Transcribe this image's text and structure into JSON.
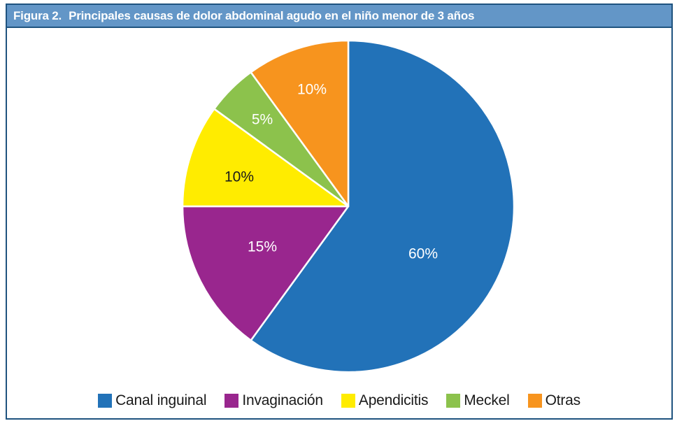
{
  "figure": {
    "header": {
      "label": "Figura 2.",
      "title": "Principales causas de dolor abdominal agudo en el niño menor de 3 años"
    },
    "colors": {
      "header_bg": "#6396C7",
      "border": "#1F537F",
      "page_bg": "#FFFFFF"
    }
  },
  "chart_data": {
    "type": "pie",
    "title": "Principales causas de dolor abdominal agudo en el niño menor de 3 años",
    "direction": "clockwise",
    "start_angle_deg": 0,
    "legend_position": "bottom",
    "slices": [
      {
        "label": "Canal inguinal",
        "value": 60,
        "display": "60%",
        "color": "#2272B8",
        "label_color": "#FFFFFF"
      },
      {
        "label": "Invaginación",
        "value": 15,
        "display": "15%",
        "color": "#99268E",
        "label_color": "#FFFFFF"
      },
      {
        "label": "Apendicitis",
        "value": 10,
        "display": "10%",
        "color": "#FFEC00",
        "label_color": "#1A1A1A"
      },
      {
        "label": "Meckel",
        "value": 5,
        "display": "5%",
        "color": "#8CC24C",
        "label_color": "#FFFFFF"
      },
      {
        "label": "Otras",
        "value": 10,
        "display": "10%",
        "color": "#F7941E",
        "label_color": "#FFFFFF"
      }
    ]
  }
}
